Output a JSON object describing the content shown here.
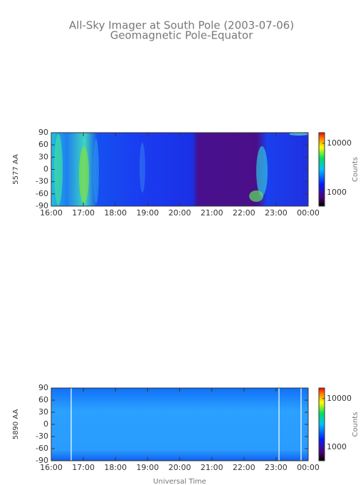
{
  "chart_data": [
    {
      "type": "heatmap",
      "title": "All-Sky Imager at South Pole (2003-07-06)",
      "subtitle": "Geomagnetic Pole-Equator",
      "y_label": "5577 AA",
      "ylim": [
        -90,
        90
      ],
      "yticks": [
        90,
        60,
        30,
        0,
        -30,
        -60,
        -90
      ],
      "xlim": [
        16,
        24
      ],
      "xticks": [
        {
          "value": 16,
          "label": "16:00"
        },
        {
          "value": 17,
          "label": "17:00"
        },
        {
          "value": 18,
          "label": "18:00"
        },
        {
          "value": 19,
          "label": "19:00"
        },
        {
          "value": 20,
          "label": "20:00"
        },
        {
          "value": 21,
          "label": "21:00"
        },
        {
          "value": 22,
          "label": "22:00"
        },
        {
          "value": 23,
          "label": "23:00"
        },
        {
          "value": 24,
          "label": "00:00"
        }
      ],
      "colorbar": {
        "label": "Counts",
        "log": true,
        "lim": [
          530,
          16500
        ],
        "ticks": [
          10000,
          1000
        ]
      }
    },
    {
      "type": "heatmap",
      "y_label": "5890 AA",
      "x_label": "Universal Time",
      "ylim": [
        -90,
        90
      ],
      "yticks": [
        90,
        60,
        30,
        0,
        -30,
        -60,
        -90
      ],
      "xlim": [
        16,
        24
      ],
      "xticks": [
        {
          "value": 16,
          "label": "16:00"
        },
        {
          "value": 17,
          "label": "17:00"
        },
        {
          "value": 18,
          "label": "18:00"
        },
        {
          "value": 19,
          "label": "19:00"
        },
        {
          "value": 20,
          "label": "20:00"
        },
        {
          "value": 21,
          "label": "21:00"
        },
        {
          "value": 22,
          "label": "22:00"
        },
        {
          "value": 23,
          "label": "23:00"
        },
        {
          "value": 24,
          "label": "00:00"
        }
      ],
      "colorbar": {
        "label": "Counts",
        "log": true,
        "lim": [
          530,
          16500
        ],
        "ticks": [
          10000,
          1000
        ]
      }
    }
  ]
}
